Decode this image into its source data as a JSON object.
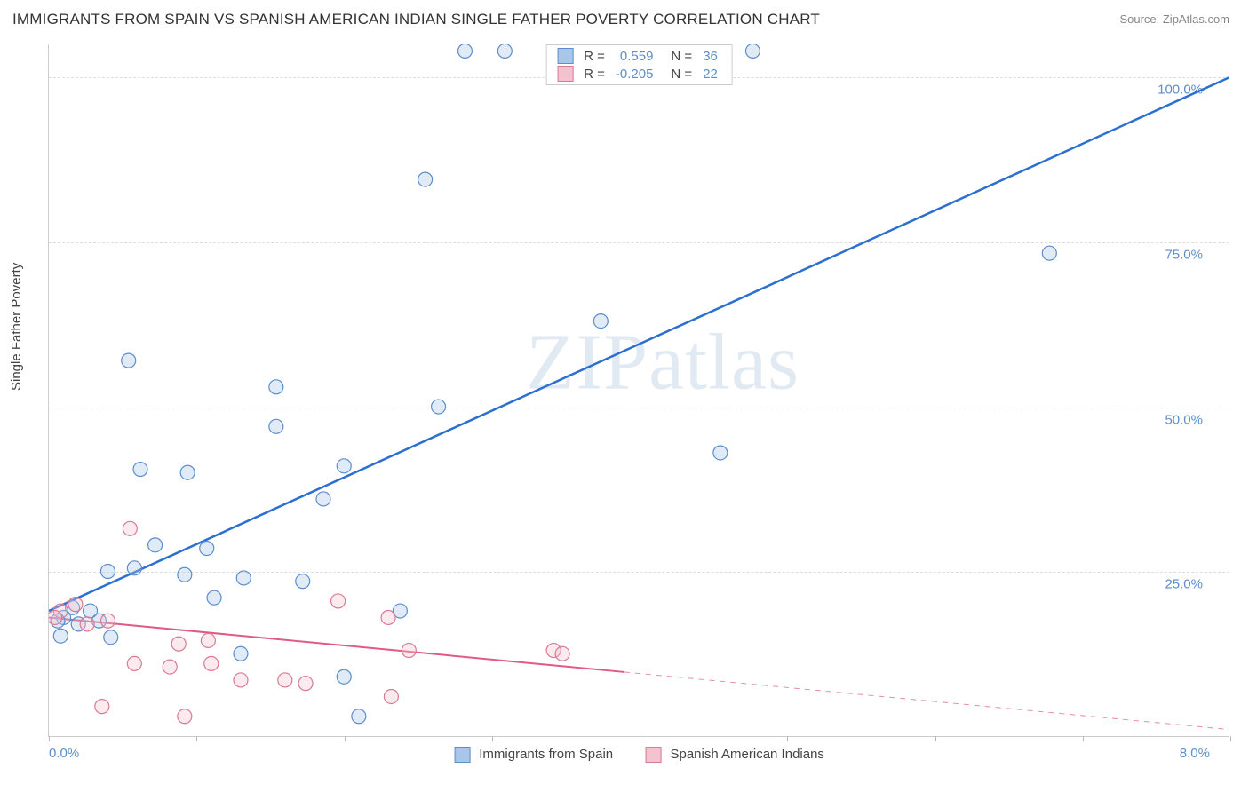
{
  "title": "IMMIGRANTS FROM SPAIN VS SPANISH AMERICAN INDIAN SINGLE FATHER POVERTY CORRELATION CHART",
  "source": "Source: ZipAtlas.com",
  "ylabel": "Single Father Poverty",
  "watermark": "ZIPatlas",
  "chart": {
    "type": "scatter",
    "xlim": [
      0,
      8.0
    ],
    "ylim": [
      0,
      105
    ],
    "x_tick_step": 1.0,
    "y_ticks": [
      25.0,
      50.0,
      75.0,
      100.0
    ],
    "y_tick_labels": [
      "25.0%",
      "50.0%",
      "75.0%",
      "100.0%"
    ],
    "x_axis_left_label": "0.0%",
    "x_axis_right_label": "8.0%",
    "background_color": "#ffffff",
    "grid_color": "#dddddd",
    "axis_color": "#cccccc",
    "tick_label_color": "#5b8ecb",
    "marker_radius": 8,
    "marker_stroke_width": 1.2,
    "marker_fill_opacity": 0.35,
    "series": [
      {
        "name": "Immigrants from Spain",
        "color_fill": "#a8c7e8",
        "color_stroke": "#5b8ecb",
        "trend_color": "#2b6fd0",
        "trend_width": 2.5,
        "R": "0.559",
        "N": "36",
        "trend": {
          "x1": 0.0,
          "y1": 19.0,
          "x2": 8.0,
          "y2": 100.0,
          "solid_until_x": 8.0
        },
        "points": [
          [
            2.82,
            104
          ],
          [
            3.09,
            104
          ],
          [
            4.58,
            104
          ],
          [
            4.77,
            104
          ],
          [
            2.55,
            84.5
          ],
          [
            6.78,
            73.3
          ],
          [
            3.74,
            63.0
          ],
          [
            0.54,
            57.0
          ],
          [
            1.54,
            53.0
          ],
          [
            2.64,
            50.0
          ],
          [
            1.54,
            47.0
          ],
          [
            4.55,
            43.0
          ],
          [
            0.62,
            40.5
          ],
          [
            0.94,
            40.0
          ],
          [
            1.86,
            36.0
          ],
          [
            2.0,
            41.0
          ],
          [
            0.72,
            29.0
          ],
          [
            1.07,
            28.5
          ],
          [
            1.72,
            23.5
          ],
          [
            1.32,
            24.0
          ],
          [
            0.92,
            24.5
          ],
          [
            0.58,
            25.5
          ],
          [
            0.4,
            25.0
          ],
          [
            1.12,
            21.0
          ],
          [
            2.38,
            19.0
          ],
          [
            0.16,
            19.5
          ],
          [
            0.28,
            19.0
          ],
          [
            0.1,
            18.0
          ],
          [
            0.06,
            17.5
          ],
          [
            0.2,
            17.0
          ],
          [
            0.34,
            17.5
          ],
          [
            1.3,
            12.5
          ],
          [
            2.0,
            9.0
          ],
          [
            0.42,
            15.0
          ],
          [
            0.08,
            15.2
          ],
          [
            2.1,
            3.0
          ]
        ]
      },
      {
        "name": "Spanish American Indians",
        "color_fill": "#f3c2cf",
        "color_stroke": "#d97a94",
        "trend_color": "#e05a82",
        "trend_width": 2,
        "R": "-0.205",
        "N": "22",
        "trend": {
          "x1": 0.0,
          "y1": 18.0,
          "x2": 8.0,
          "y2": 1.0,
          "solid_until_x": 3.9
        },
        "points": [
          [
            0.55,
            31.5
          ],
          [
            0.18,
            20.0
          ],
          [
            0.08,
            19.0
          ],
          [
            0.04,
            18.0
          ],
          [
            0.26,
            17.0
          ],
          [
            0.4,
            17.5
          ],
          [
            1.96,
            20.5
          ],
          [
            0.88,
            14.0
          ],
          [
            1.08,
            14.5
          ],
          [
            0.58,
            11.0
          ],
          [
            0.82,
            10.5
          ],
          [
            1.1,
            11.0
          ],
          [
            1.3,
            8.5
          ],
          [
            1.6,
            8.5
          ],
          [
            1.74,
            8.0
          ],
          [
            2.44,
            13.0
          ],
          [
            2.3,
            18.0
          ],
          [
            3.42,
            13.0
          ],
          [
            3.48,
            12.5
          ],
          [
            2.32,
            6.0
          ],
          [
            0.36,
            4.5
          ],
          [
            0.92,
            3.0
          ]
        ]
      }
    ],
    "legend_bottom": [
      {
        "label": "Immigrants from Spain",
        "fill": "#a8c7e8",
        "stroke": "#5b8ecb"
      },
      {
        "label": "Spanish American Indians",
        "fill": "#f3c2cf",
        "stroke": "#d97a94"
      }
    ],
    "legend_top_labels": {
      "R": "R =",
      "N": "N ="
    }
  }
}
